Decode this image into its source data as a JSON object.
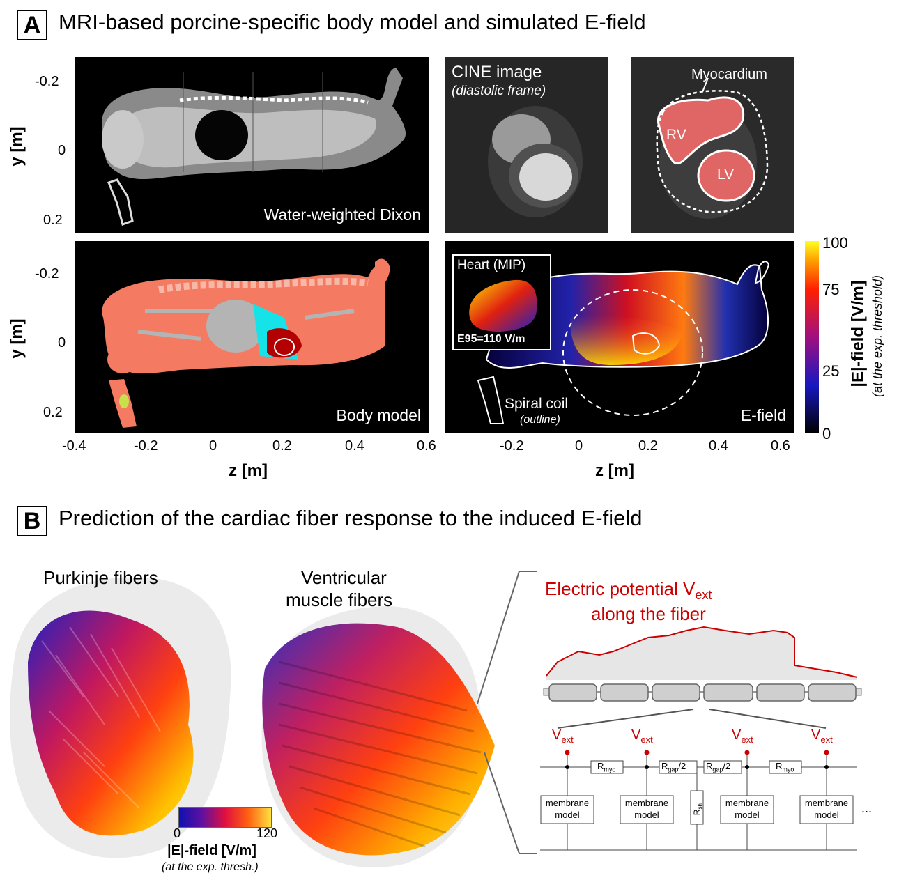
{
  "panelA": {
    "letter": "A",
    "title": "MRI-based porcine-specific body model and simulated E-field",
    "dixon_caption": "Water-weighted Dixon",
    "cine_title": "CINE image",
    "cine_subtitle": "(diastolic frame)",
    "myocardium_label": "Myocardium",
    "rv_label": "RV",
    "lv_label": "LV",
    "body_model_caption": "Body model",
    "efield_caption": "E-field",
    "heart_mip_label": "Heart (MIP)",
    "e95_label": "E95=110 V/m",
    "spiral_coil_label": "Spiral coil",
    "spiral_coil_sub": "(outline)",
    "y_axis_label": "y [m]",
    "z_axis_label": "z [m]",
    "y_ticks": [
      "-0.2",
      "0",
      "0.2"
    ],
    "z_ticks_left": [
      "-0.4",
      "-0.2",
      "0",
      "0.2",
      "0.4",
      "0.6"
    ],
    "z_ticks_right": [
      "-0.2",
      "0",
      "0.2",
      "0.4",
      "0.6"
    ],
    "colorbar": {
      "ticks": [
        "100",
        "75",
        "25",
        "0"
      ],
      "label": "|E|-field [V/m]",
      "sublabel": "(at the exp. threshold)"
    }
  },
  "panelB": {
    "letter": "B",
    "title": "Prediction of the cardiac fiber response to the induced E-field",
    "purkinje_label": "Purkinje fibers",
    "ventricular_label_1": "Ventricular",
    "ventricular_label_2": "muscle fibers",
    "colorbar": {
      "min": "0",
      "max": "120",
      "label": "|E|-field [V/m]",
      "sublabel": "(at the exp. thresh.)"
    },
    "potential_title_1": "Electric potential V",
    "potential_title_sub": "ext",
    "potential_title_2": "along the fiber",
    "vext_base": "V",
    "vext_sub": "ext",
    "r_myo": "R",
    "r_myo_sub": "myo",
    "r_gap": "R",
    "r_gap_sub": "gap",
    "r_gap_suffix": "/2",
    "r_sh": "R",
    "r_sh_sub": "sh",
    "membrane_line1": "membrane",
    "membrane_line2": "model",
    "ellipsis": "..."
  },
  "colors": {
    "accent_red": "#cc0000",
    "tissue_salmon": "#f47a62",
    "tissue_gray": "#b4b4b4",
    "tissue_cyan": "#16e3e8",
    "heart_red": "#b30000"
  }
}
